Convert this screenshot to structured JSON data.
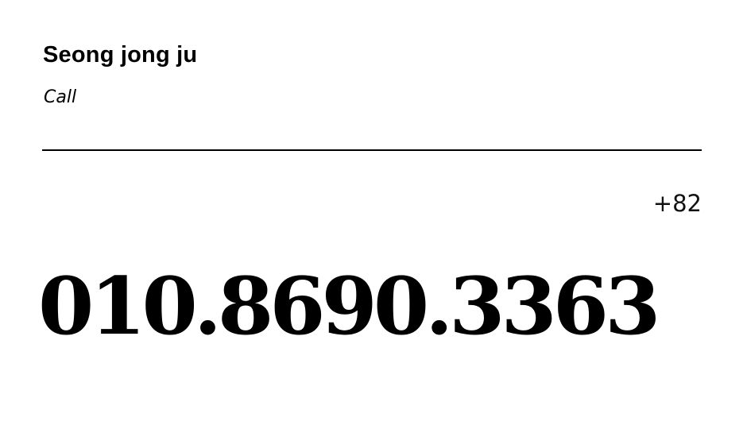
{
  "contact": {
    "name": "Seong jong ju",
    "label": "Call",
    "country_code": "+82",
    "phone_number": "010.8690.3363"
  },
  "colors": {
    "background": "#ffffff",
    "text": "#000000",
    "divider": "#000000"
  }
}
